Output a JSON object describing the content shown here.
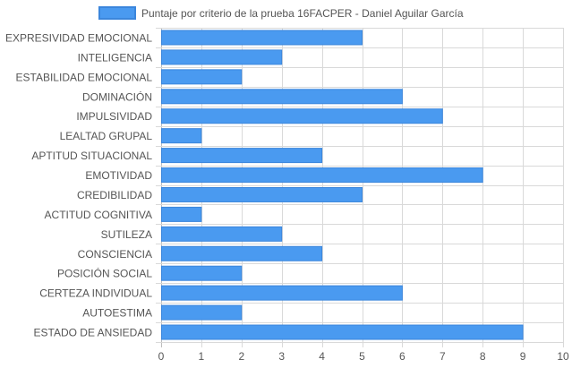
{
  "chart_data": {
    "type": "bar",
    "orientation": "horizontal",
    "categories": [
      "EXPRESIVIDAD EMOCIONAL",
      "INTELIGENCIA",
      "ESTABILIDAD EMOCIONAL",
      "DOMINACIÓN",
      "IMPULSIVIDAD",
      "LEALTAD GRUPAL",
      "APTITUD SITUACIONAL",
      "EMOTIVIDAD",
      "CREDIBILIDAD",
      "ACTITUD COGNITIVA",
      "SUTILEZA",
      "CONSCIENCIA",
      "POSICIÓN SOCIAL",
      "CERTEZA INDIVIDUAL",
      "AUTOESTIMA",
      "ESTADO DE ANSIEDAD"
    ],
    "series": [
      {
        "name": "Puntaje por criterio de la prueba 16FACPER - Daniel Aguilar García",
        "values": [
          5,
          3,
          2,
          6,
          7,
          1,
          4,
          8,
          5,
          1,
          3,
          4,
          2,
          6,
          2,
          9
        ]
      }
    ],
    "title": "",
    "xlabel": "",
    "ylabel": "",
    "xlim": [
      0,
      10
    ],
    "x_ticks": [
      "0",
      "1",
      "2",
      "3",
      "4",
      "5",
      "6",
      "7",
      "8",
      "9",
      "10"
    ],
    "grid": true,
    "legend_position": "top",
    "colors": {
      "bar_fill": "#4a9af0",
      "bar_stroke": "#3b86dc",
      "grid": "#d9d9d9",
      "axis_text": "#555555"
    }
  }
}
